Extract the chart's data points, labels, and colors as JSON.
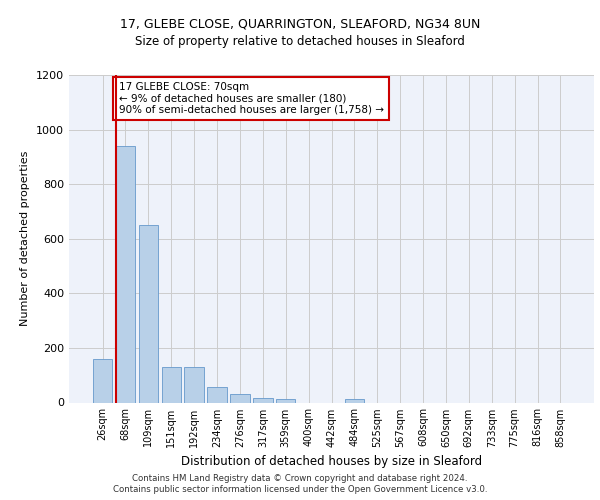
{
  "title_line1": "17, GLEBE CLOSE, QUARRINGTON, SLEAFORD, NG34 8UN",
  "title_line2": "Size of property relative to detached houses in Sleaford",
  "xlabel": "Distribution of detached houses by size in Sleaford",
  "ylabel": "Number of detached properties",
  "categories": [
    "26sqm",
    "68sqm",
    "109sqm",
    "151sqm",
    "192sqm",
    "234sqm",
    "276sqm",
    "317sqm",
    "359sqm",
    "400sqm",
    "442sqm",
    "484sqm",
    "525sqm",
    "567sqm",
    "608sqm",
    "650sqm",
    "692sqm",
    "733sqm",
    "775sqm",
    "816sqm",
    "858sqm"
  ],
  "values": [
    160,
    940,
    650,
    130,
    130,
    58,
    30,
    15,
    12,
    0,
    0,
    12,
    0,
    0,
    0,
    0,
    0,
    0,
    0,
    0,
    0
  ],
  "bar_color": "#b8d0e8",
  "bar_edge_color": "#6699cc",
  "red_line_index": 1,
  "annotation_text": "17 GLEBE CLOSE: 70sqm\n← 9% of detached houses are smaller (180)\n90% of semi-detached houses are larger (1,758) →",
  "annotation_box_color": "#ffffff",
  "annotation_box_edge": "#cc0000",
  "ylim": [
    0,
    1200
  ],
  "yticks": [
    0,
    200,
    400,
    600,
    800,
    1000,
    1200
  ],
  "footer_line1": "Contains HM Land Registry data © Crown copyright and database right 2024.",
  "footer_line2": "Contains public sector information licensed under the Open Government Licence v3.0.",
  "bg_color": "#eef2fa"
}
